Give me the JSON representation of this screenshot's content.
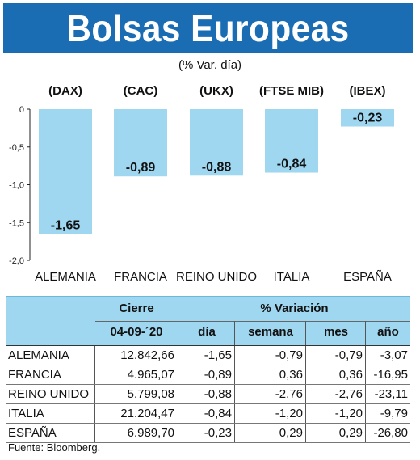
{
  "title": "Bolsas Europeas",
  "subtitle": "(% Var. día)",
  "source": "Fuente: Bloomberg.",
  "colors": {
    "header_bg": "#1a6cb3",
    "bar": "#9fd6f0",
    "table_header_bg": "#9fd6f0"
  },
  "chart_data": {
    "type": "bar",
    "title": "Bolsas Europeas",
    "subtitle": "(% Var. día)",
    "categories": [
      "ALEMANIA",
      "FRANCIA",
      "REINO UNIDO",
      "ITALIA",
      "ESPAÑA"
    ],
    "index_labels": [
      "(DAX)",
      "(CAC)",
      "(UKX)",
      "(FTSE MIB)",
      "(IBEX)"
    ],
    "values": [
      -1.65,
      -0.89,
      -0.88,
      -0.84,
      -0.23
    ],
    "value_labels": [
      "-1,65",
      "-0,89",
      "-0,88",
      "-0,84",
      "-0,23"
    ],
    "ylim": [
      -2.0,
      0
    ],
    "yticks": [
      0,
      -0.5,
      -1.0,
      -1.5,
      -2.0
    ],
    "ytick_labels": [
      "0",
      "-0,5",
      "-1,0",
      "-1,5",
      "-2,0"
    ],
    "grid": false
  },
  "table": {
    "header_group_left": "Cierre",
    "header_group_right": "% Variación",
    "date": "04-09-´20",
    "columns": [
      "día",
      "semana",
      "mes",
      "año"
    ],
    "rows": [
      {
        "name": "ALEMANIA",
        "cierre": "12.842,66",
        "dia": "-1,65",
        "semana": "-0,79",
        "mes": "-0,79",
        "anio": "-3,07"
      },
      {
        "name": "FRANCIA",
        "cierre": "4.965,07",
        "dia": "-0,89",
        "semana": "0,36",
        "mes": "0,36",
        "anio": "-16,95"
      },
      {
        "name": "REINO UNIDO",
        "cierre": "5.799,08",
        "dia": "-0,88",
        "semana": "-2,76",
        "mes": "-2,76",
        "anio": "-23,11"
      },
      {
        "name": "ITALIA",
        "cierre": "21.204,47",
        "dia": "-0,84",
        "semana": "-1,20",
        "mes": "-1,20",
        "anio": "-9,79"
      },
      {
        "name": "ESPAÑA",
        "cierre": "6.989,70",
        "dia": "-0,23",
        "semana": "0,29",
        "mes": "0,29",
        "anio": "-26,80"
      }
    ]
  }
}
